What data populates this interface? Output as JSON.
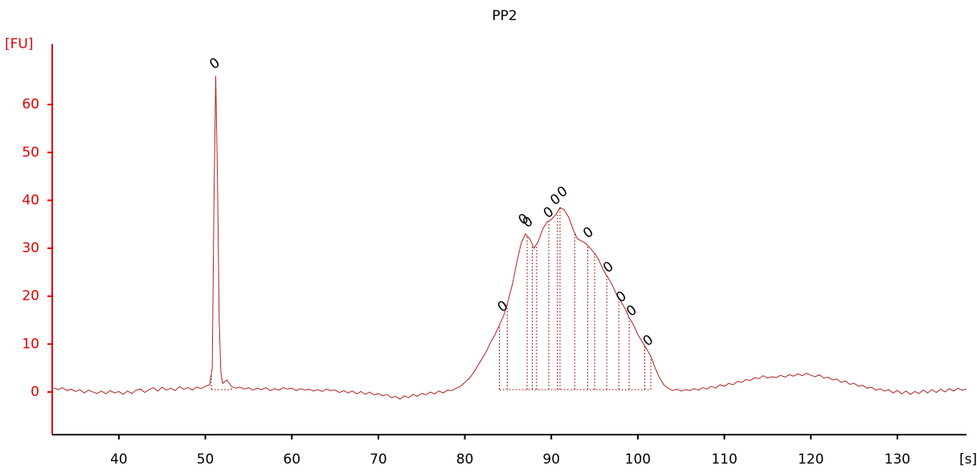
{
  "chart_data": {
    "type": "line",
    "title": "PP2",
    "ylabel": "[FU]",
    "xlabel": "[s]",
    "xlim": [
      32.3,
      138
    ],
    "ylim": [
      -8.9,
      72.6
    ],
    "xticks": [
      40,
      50,
      60,
      70,
      80,
      90,
      100,
      110,
      120,
      130
    ],
    "yticks": [
      0,
      10,
      20,
      30,
      40,
      50,
      60
    ],
    "axis_color": "#e00000",
    "x": [
      32.5,
      33,
      33.5,
      34,
      34.5,
      35,
      35.5,
      36,
      36.5,
      37,
      37.5,
      38,
      38.5,
      39,
      39.5,
      40,
      40.5,
      41,
      41.5,
      42,
      42.5,
      43,
      43.5,
      44,
      44.5,
      45,
      45.5,
      46,
      46.5,
      47,
      47.5,
      48,
      48.5,
      49,
      49.5,
      50,
      50.5,
      50.8,
      51.0,
      51.2,
      51.4,
      51.6,
      51.8,
      52,
      52.5,
      53,
      53.5,
      54,
      54.5,
      55,
      55.5,
      56,
      56.5,
      57,
      57.5,
      58,
      58.5,
      59,
      59.5,
      60,
      60.5,
      61,
      61.5,
      62,
      62.5,
      63,
      63.5,
      64,
      64.5,
      65,
      65.5,
      66,
      66.5,
      67,
      67.5,
      68,
      68.5,
      69,
      69.5,
      70,
      70.5,
      71,
      71.5,
      72,
      72.5,
      73,
      73.5,
      74,
      74.5,
      75,
      75.5,
      76,
      76.5,
      77,
      77.5,
      78,
      78.5,
      79,
      79.5,
      80,
      80.5,
      81,
      81.5,
      82,
      82.5,
      83,
      83.5,
      84,
      84.5,
      85,
      85.5,
      86,
      86.5,
      87,
      87.5,
      88,
      88.5,
      89,
      89.5,
      90,
      90.5,
      91,
      91.5,
      92,
      92.5,
      93,
      93.5,
      94,
      94.5,
      95,
      95.5,
      96,
      96.5,
      97,
      97.5,
      98,
      98.5,
      99,
      99.5,
      100,
      100.5,
      101,
      101.5,
      102,
      102.5,
      103,
      103.5,
      104,
      104.5,
      105,
      105.5,
      106,
      106.5,
      107,
      107.5,
      108,
      108.5,
      109,
      109.5,
      110,
      110.5,
      111,
      111.5,
      112,
      112.5,
      113,
      113.5,
      114,
      114.5,
      115,
      115.5,
      116,
      116.5,
      117,
      117.5,
      118,
      118.5,
      119,
      119.5,
      120,
      120.5,
      121,
      121.5,
      122,
      122.5,
      123,
      123.5,
      124,
      124.5,
      125,
      125.5,
      126,
      126.5,
      127,
      127.5,
      128,
      128.5,
      129,
      129.5,
      130,
      130.5,
      131,
      131.5,
      132,
      132.5,
      133,
      133.5,
      134,
      134.5,
      135,
      135.5,
      136,
      136.5,
      137,
      137.5,
      138
    ],
    "series": [
      {
        "color": "#b22222",
        "values": [
          0.8,
          0.5,
          0.9,
          0.3,
          0.6,
          0.1,
          0.5,
          -0.2,
          0.4,
          0.0,
          -0.3,
          0.2,
          -0.4,
          0.3,
          -0.2,
          0.1,
          -0.5,
          0.2,
          -0.3,
          0.4,
          0.6,
          -0.1,
          0.5,
          0.9,
          0.2,
          1.0,
          0.4,
          0.8,
          0.3,
          1.1,
          0.6,
          0.9,
          0.4,
          1.0,
          0.7,
          1.2,
          1.5,
          5,
          40,
          66,
          45,
          15,
          4,
          1.8,
          2.5,
          1.2,
          0.8,
          1.0,
          0.6,
          0.9,
          0.4,
          0.8,
          0.5,
          0.9,
          0.3,
          0.7,
          0.4,
          0.9,
          0.6,
          0.8,
          0.3,
          0.7,
          0.4,
          0.6,
          0.2,
          0.5,
          0.1,
          0.6,
          0.3,
          0.4,
          -0.1,
          0.3,
          -0.2,
          0.2,
          -0.4,
          0.1,
          -0.5,
          0.0,
          -0.6,
          -0.3,
          -0.8,
          -0.5,
          -1.2,
          -0.9,
          -1.5,
          -0.8,
          -1.2,
          -0.5,
          -0.9,
          -0.3,
          -0.6,
          0.0,
          -0.4,
          0.2,
          -0.2,
          0.4,
          0.3,
          0.8,
          1.2,
          2.0,
          2.8,
          4.0,
          5.5,
          7.0,
          8.5,
          10.5,
          12.0,
          14.0,
          16.0,
          19.0,
          22.5,
          27.0,
          31.0,
          33.0,
          32.0,
          30.0,
          31.5,
          34.0,
          35.5,
          36.0,
          37.0,
          38.5,
          38.0,
          36.5,
          34.0,
          32.0,
          31.5,
          31.0,
          30.0,
          29.0,
          27.5,
          25.5,
          24.0,
          22.5,
          20.5,
          19.0,
          17.5,
          15.5,
          14.0,
          12.0,
          10.5,
          9.0,
          7.5,
          5.0,
          3.0,
          1.5,
          0.8,
          0.3,
          0.6,
          0.2,
          0.5,
          0.3,
          0.7,
          0.4,
          0.9,
          0.6,
          1.2,
          0.8,
          1.5,
          1.2,
          1.8,
          1.5,
          2.2,
          2.0,
          2.6,
          2.4,
          3.0,
          2.8,
          3.4,
          2.9,
          3.2,
          3.0,
          3.5,
          3.1,
          3.6,
          3.3,
          3.8,
          3.4,
          3.9,
          3.5,
          3.2,
          3.6,
          2.9,
          3.1,
          2.5,
          2.7,
          2.0,
          2.3,
          1.6,
          1.8,
          1.2,
          1.4,
          0.8,
          1.0,
          0.4,
          0.7,
          0.2,
          0.5,
          -0.2,
          0.3,
          -0.4,
          0.2,
          -0.5,
          0.1,
          -0.3,
          0.4,
          -0.2,
          0.5,
          -0.1,
          0.6,
          0.0,
          0.7,
          0.2,
          0.8,
          0.4,
          0.6
        ]
      }
    ],
    "baseline": 0.5,
    "baseline_spans": [
      [
        50.7,
        53.0
      ],
      [
        84.0,
        101.5
      ]
    ],
    "region_edges": [
      50.7,
      53.0,
      84.0,
      84.9,
      87.2,
      87.8,
      88.3,
      89.7,
      90.7,
      91.0,
      92.7,
      94.2,
      95.0,
      96.4,
      97.8,
      99.0,
      100.8,
      101.5
    ],
    "annotations": [
      {
        "text": "0",
        "x": 51.1,
        "y": 68.5
      },
      {
        "text": "0",
        "x": 84.4,
        "y": 17.8
      },
      {
        "text": "0",
        "x": 86.8,
        "y": 36.0
      },
      {
        "text": "0",
        "x": 87.3,
        "y": 35.4
      },
      {
        "text": "0",
        "x": 89.7,
        "y": 37.4
      },
      {
        "text": "0",
        "x": 90.5,
        "y": 40.1
      },
      {
        "text": "0",
        "x": 91.3,
        "y": 41.7
      },
      {
        "text": "0",
        "x": 94.3,
        "y": 33.2
      },
      {
        "text": "0",
        "x": 96.6,
        "y": 26.0
      },
      {
        "text": "0",
        "x": 98.1,
        "y": 19.8
      },
      {
        "text": "0",
        "x": 99.3,
        "y": 16.9
      },
      {
        "text": "0",
        "x": 101.2,
        "y": 10.7
      }
    ]
  }
}
